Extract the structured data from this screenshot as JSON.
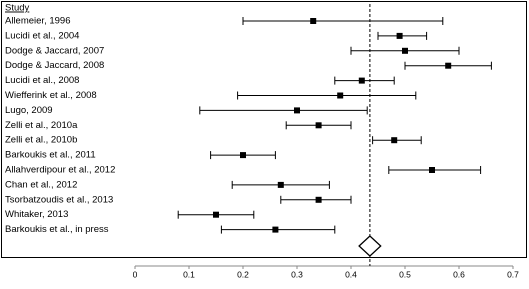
{
  "chart_data": {
    "type": "forest",
    "column_header": "Study",
    "categories": [
      "Allemeier, 1996",
      "Lucidi et al., 2004",
      "Dodge & Jaccard, 2007",
      "Dodge & Jaccard, 2008",
      "Lucidi et al., 2008",
      "Wiefferink et al., 2008",
      "Lugo, 2009",
      "Zelli et al., 2010a",
      "Zelli et al., 2010b",
      "Barkoukis et al., 2011",
      "Allahverdipour et al., 2012",
      "Chan et al., 2012",
      "Tsorbatzoudis et al., 2013",
      "Whitaker, 2013",
      "Barkoukis et al., in press"
    ],
    "values": [
      0.33,
      0.49,
      0.5,
      0.58,
      0.42,
      0.38,
      0.3,
      0.34,
      0.48,
      0.2,
      0.55,
      0.27,
      0.34,
      0.15,
      0.26
    ],
    "lower": [
      0.2,
      0.45,
      0.4,
      0.5,
      0.37,
      0.19,
      0.12,
      0.28,
      0.44,
      0.14,
      0.47,
      0.18,
      0.27,
      0.08,
      0.16
    ],
    "upper": [
      0.57,
      0.54,
      0.6,
      0.66,
      0.48,
      0.52,
      0.43,
      0.4,
      0.53,
      0.26,
      0.64,
      0.36,
      0.4,
      0.22,
      0.37
    ],
    "summary": {
      "value": 0.435,
      "lower": 0.415,
      "upper": 0.455
    },
    "color": "#000000",
    "xlim": [
      0,
      0.7
    ],
    "xticks": [
      0,
      0.1,
      0.2,
      0.3,
      0.4,
      0.5,
      0.6,
      0.7
    ]
  }
}
